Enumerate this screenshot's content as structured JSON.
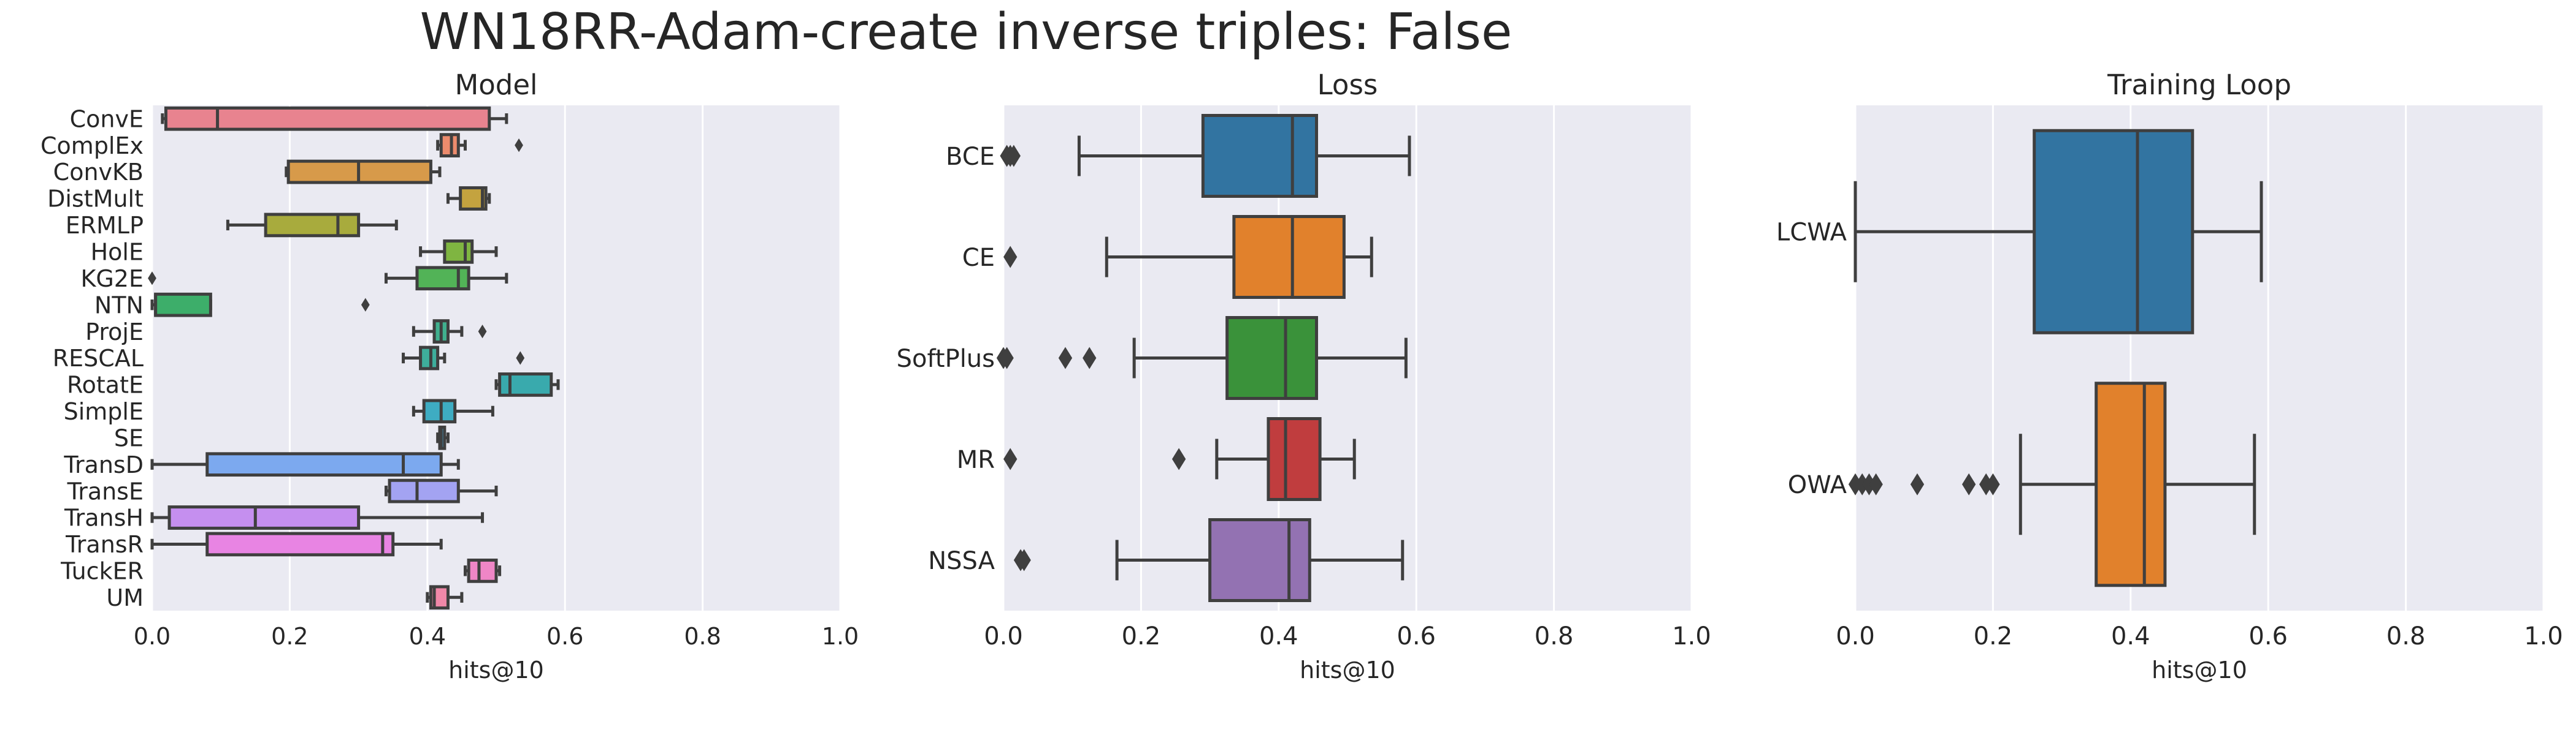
{
  "figure": {
    "title": "WN18RR-Adam-create inverse triples: False"
  },
  "colors": {
    "plot_bg": "#EAEAF2",
    "grid": "#FFFFFF",
    "text": "#262626",
    "line": "#3F3F3F"
  },
  "chart_data": [
    {
      "type": "box",
      "orientation": "horizontal",
      "title": "Model",
      "xlabel": "hits@10",
      "xlim": [
        0,
        1.0
      ],
      "xticks": [
        "0.0",
        "0.2",
        "0.4",
        "0.6",
        "0.8",
        "1.0"
      ],
      "grid": true,
      "boxes": [
        {
          "label": "ConvE",
          "color": "#E8838F",
          "whislo": 0.015,
          "q1": 0.02,
          "med": 0.095,
          "q3": 0.49,
          "whishi": 0.515,
          "fliers": []
        },
        {
          "label": "ComplEx",
          "color": "#EC8B6D",
          "whislo": 0.415,
          "q1": 0.42,
          "med": 0.435,
          "q3": 0.445,
          "whishi": 0.455,
          "fliers": [
            0.533
          ]
        },
        {
          "label": "ConvKB",
          "color": "#D79A4A",
          "whislo": 0.195,
          "q1": 0.198,
          "med": 0.3,
          "q3": 0.405,
          "whishi": 0.418,
          "fliers": []
        },
        {
          "label": "DistMult",
          "color": "#C4A33F",
          "whislo": 0.43,
          "q1": 0.448,
          "med": 0.48,
          "q3": 0.485,
          "whishi": 0.49,
          "fliers": []
        },
        {
          "label": "ERMLP",
          "color": "#A8AB3D",
          "whislo": 0.11,
          "q1": 0.165,
          "med": 0.27,
          "q3": 0.3,
          "whishi": 0.355,
          "fliers": []
        },
        {
          "label": "HolE",
          "color": "#7FB541",
          "whislo": 0.39,
          "q1": 0.425,
          "med": 0.455,
          "q3": 0.465,
          "whishi": 0.5,
          "fliers": []
        },
        {
          "label": "KG2E",
          "color": "#52B357",
          "whislo": 0.34,
          "q1": 0.385,
          "med": 0.445,
          "q3": 0.46,
          "whishi": 0.515,
          "fliers": [
            0.0
          ]
        },
        {
          "label": "NTN",
          "color": "#3DAE6A",
          "whislo": 0.0,
          "q1": 0.005,
          "med": 0.005,
          "q3": 0.085,
          "whishi": 0.085,
          "fliers": [
            0.31
          ]
        },
        {
          "label": "ProjE",
          "color": "#40B08E",
          "whislo": 0.38,
          "q1": 0.41,
          "med": 0.42,
          "q3": 0.43,
          "whishi": 0.45,
          "fliers": [
            0.48
          ]
        },
        {
          "label": "RESCAL",
          "color": "#3EAE9B",
          "whislo": 0.365,
          "q1": 0.39,
          "med": 0.405,
          "q3": 0.415,
          "whishi": 0.425,
          "fliers": [
            0.535
          ]
        },
        {
          "label": "RotatE",
          "color": "#39AAAD",
          "whislo": 0.5,
          "q1": 0.505,
          "med": 0.52,
          "q3": 0.58,
          "whishi": 0.59,
          "fliers": []
        },
        {
          "label": "SimplE",
          "color": "#3EACC2",
          "whislo": 0.38,
          "q1": 0.395,
          "med": 0.42,
          "q3": 0.44,
          "whishi": 0.495,
          "fliers": []
        },
        {
          "label": "SE",
          "color": "#46A8D6",
          "whislo": 0.415,
          "q1": 0.418,
          "med": 0.42,
          "q3": 0.425,
          "whishi": 0.43,
          "fliers": []
        },
        {
          "label": "TransD",
          "color": "#7CA9EF",
          "whislo": 0.0,
          "q1": 0.08,
          "med": 0.365,
          "q3": 0.42,
          "whishi": 0.445,
          "fliers": []
        },
        {
          "label": "TransE",
          "color": "#A3A3F2",
          "whislo": 0.34,
          "q1": 0.345,
          "med": 0.385,
          "q3": 0.445,
          "whishi": 0.5,
          "fliers": []
        },
        {
          "label": "TransH",
          "color": "#C58FEF",
          "whislo": 0.0,
          "q1": 0.025,
          "med": 0.15,
          "q3": 0.3,
          "whishi": 0.48,
          "fliers": []
        },
        {
          "label": "TransR",
          "color": "#E884E3",
          "whislo": 0.0,
          "q1": 0.08,
          "med": 0.335,
          "q3": 0.35,
          "whishi": 0.42,
          "fliers": []
        },
        {
          "label": "TuckER",
          "color": "#EF86C6",
          "whislo": 0.455,
          "q1": 0.46,
          "med": 0.475,
          "q3": 0.5,
          "whishi": 0.505,
          "fliers": []
        },
        {
          "label": "UM",
          "color": "#F088A8",
          "whislo": 0.4,
          "q1": 0.405,
          "med": 0.41,
          "q3": 0.43,
          "whishi": 0.45,
          "fliers": []
        }
      ]
    },
    {
      "type": "box",
      "orientation": "horizontal",
      "title": "Loss",
      "xlabel": "hits@10",
      "xlim": [
        0,
        1.0
      ],
      "xticks": [
        "0.0",
        "0.2",
        "0.4",
        "0.6",
        "0.8",
        "1.0"
      ],
      "grid": true,
      "boxes": [
        {
          "label": "BCE",
          "color": "#3274A1",
          "whislo": 0.11,
          "q1": 0.29,
          "med": 0.42,
          "q3": 0.455,
          "whishi": 0.59,
          "fliers": [
            0.005,
            0.01,
            0.015
          ]
        },
        {
          "label": "CE",
          "color": "#E1812C",
          "whislo": 0.15,
          "q1": 0.335,
          "med": 0.42,
          "q3": 0.495,
          "whishi": 0.535,
          "fliers": [
            0.01
          ]
        },
        {
          "label": "SoftPlus",
          "color": "#3A923A",
          "whislo": 0.19,
          "q1": 0.325,
          "med": 0.41,
          "q3": 0.455,
          "whishi": 0.585,
          "fliers": [
            0.0,
            0.005,
            0.09,
            0.125
          ]
        },
        {
          "label": "MR",
          "color": "#C03D3E",
          "whislo": 0.31,
          "q1": 0.385,
          "med": 0.41,
          "q3": 0.46,
          "whishi": 0.51,
          "fliers": [
            0.01,
            0.255
          ]
        },
        {
          "label": "NSSA",
          "color": "#9372B2",
          "whislo": 0.165,
          "q1": 0.3,
          "med": 0.415,
          "q3": 0.445,
          "whishi": 0.58,
          "fliers": [
            0.025,
            0.03
          ]
        }
      ]
    },
    {
      "type": "box",
      "orientation": "horizontal",
      "title": "Training Loop",
      "xlabel": "hits@10",
      "xlim": [
        0,
        1.0
      ],
      "xticks": [
        "0.0",
        "0.2",
        "0.4",
        "0.6",
        "0.8",
        "1.0"
      ],
      "grid": true,
      "boxes": [
        {
          "label": "LCWA",
          "color": "#3274A1",
          "whislo": 0.0,
          "q1": 0.26,
          "med": 0.41,
          "q3": 0.49,
          "whishi": 0.59,
          "fliers": []
        },
        {
          "label": "OWA",
          "color": "#E1812C",
          "whislo": 0.24,
          "q1": 0.35,
          "med": 0.42,
          "q3": 0.45,
          "whishi": 0.58,
          "fliers": [
            0.0,
            0.01,
            0.02,
            0.03,
            0.09,
            0.165,
            0.19,
            0.2
          ]
        }
      ]
    }
  ]
}
